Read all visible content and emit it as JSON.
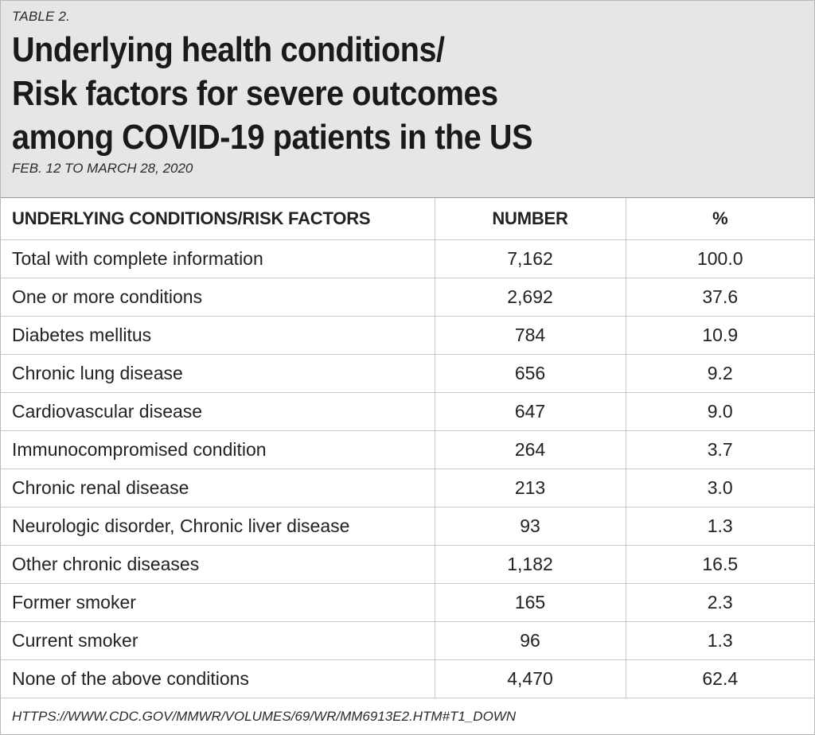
{
  "header": {
    "table_label": "TABLE 2.",
    "title_lines": [
      "Underlying health conditions/",
      "Risk factors for severe outcomes",
      "among COVID-19 patients in the US"
    ],
    "subtitle": "FEB. 12 TO MARCH 28, 2020"
  },
  "table": {
    "columns": [
      "UNDERLYING CONDITIONS/RISK FACTORS",
      "NUMBER",
      "%"
    ],
    "rows": [
      {
        "condition": "Total with complete information",
        "number": "7,162",
        "percent": "100.0"
      },
      {
        "condition": "One or more conditions",
        "number": "2,692",
        "percent": "37.6"
      },
      {
        "condition": "Diabetes mellitus",
        "number": "784",
        "percent": "10.9"
      },
      {
        "condition": "Chronic lung disease",
        "number": "656",
        "percent": "9.2"
      },
      {
        "condition": "Cardiovascular disease",
        "number": "647",
        "percent": "9.0"
      },
      {
        "condition": "Immunocompromised condition",
        "number": "264",
        "percent": "3.7"
      },
      {
        "condition": "Chronic renal disease",
        "number": "213",
        "percent": "3.0"
      },
      {
        "condition": "Neurologic disorder, Chronic liver disease",
        "number": "93",
        "percent": "1.3"
      },
      {
        "condition": "Other chronic diseases",
        "number": "1,182",
        "percent": "16.5"
      },
      {
        "condition": "Former smoker",
        "number": "165",
        "percent": "2.3"
      },
      {
        "condition": "Current smoker",
        "number": "96",
        "percent": "1.3"
      },
      {
        "condition": "None of the above conditions",
        "number": "4,470",
        "percent": "62.4"
      }
    ]
  },
  "footer": {
    "source": "HTTPS://WWW.CDC.GOV/MMWR/VOLUMES/69/WR/MM6913E2.HTM#T1_DOWN"
  },
  "colors": {
    "header_background": "#e6e6e6",
    "text": "#1e1e1e",
    "rule": "#c8c8c8"
  }
}
